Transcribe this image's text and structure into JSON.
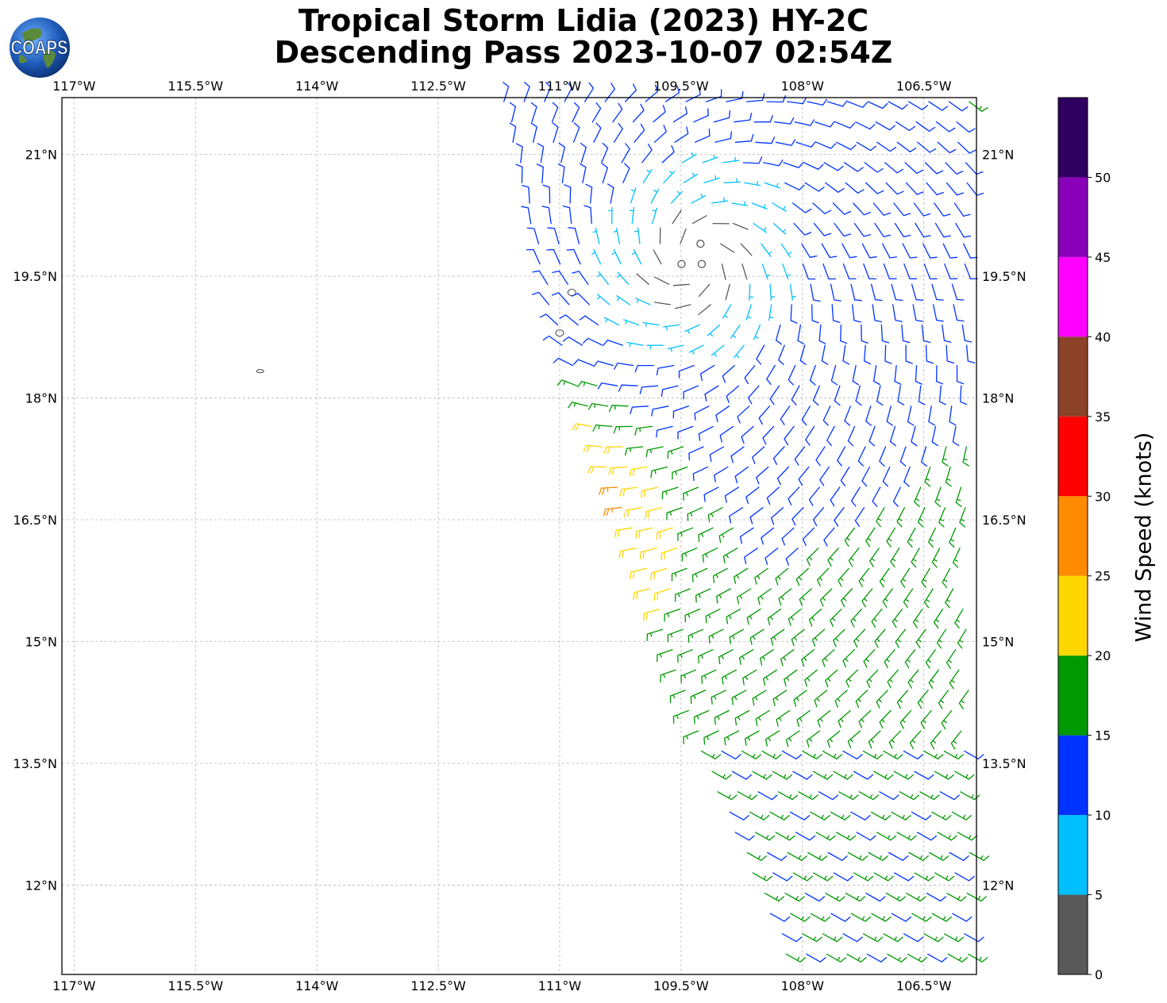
{
  "title": {
    "line1": "Tropical Storm Lidia (2023) HY-2C",
    "line2": "Descending Pass 2023-10-07 02:54Z"
  },
  "logo": {
    "text": "COAPS",
    "icon": "globe-icon"
  },
  "map": {
    "lon_range": [
      -117.15,
      -105.85
    ],
    "lat_range": [
      10.9,
      21.7
    ],
    "lon_ticks": [
      {
        "value": -117,
        "label": "117°W"
      },
      {
        "value": -115.5,
        "label": "115.5°W"
      },
      {
        "value": -114,
        "label": "114°W"
      },
      {
        "value": -112.5,
        "label": "112.5°W"
      },
      {
        "value": -111,
        "label": "111°W"
      },
      {
        "value": -109.5,
        "label": "109.5°W"
      },
      {
        "value": -108,
        "label": "108°W"
      },
      {
        "value": -106.5,
        "label": "106.5°W"
      }
    ],
    "lat_ticks": [
      {
        "value": 21,
        "label": "21°N"
      },
      {
        "value": 19.5,
        "label": "19.5°N"
      },
      {
        "value": 18,
        "label": "18°N"
      },
      {
        "value": 16.5,
        "label": "16.5°N"
      },
      {
        "value": 15,
        "label": "15°N"
      },
      {
        "value": 13.5,
        "label": "13.5°N"
      },
      {
        "value": 12,
        "label": "12°N"
      }
    ],
    "grid": true,
    "storm_center": {
      "lon": -109.3,
      "lat": 19.7
    },
    "swath_edge_west": [
      [
        -111.7,
        21.7
      ],
      [
        -111.1,
        19.0
      ],
      [
        -110.0,
        16.0
      ],
      [
        -109.2,
        13.5
      ],
      [
        -108.2,
        11.2
      ]
    ],
    "islands": [
      {
        "lon": -114.7,
        "lat": 18.33
      },
      {
        "lon": -111.0,
        "lat": 18.8
      },
      {
        "lon": -110.85,
        "lat": 19.3
      }
    ]
  },
  "colorbar": {
    "label": "Wind Speed (knots)",
    "range": [
      0,
      55
    ],
    "bins": [
      {
        "from": 0,
        "to": 5,
        "color": "#595959"
      },
      {
        "from": 5,
        "to": 10,
        "color": "#00bfff"
      },
      {
        "from": 10,
        "to": 15,
        "color": "#0033ff"
      },
      {
        "from": 15,
        "to": 20,
        "color": "#009900"
      },
      {
        "from": 20,
        "to": 25,
        "color": "#ffd700"
      },
      {
        "from": 25,
        "to": 30,
        "color": "#ff8c00"
      },
      {
        "from": 30,
        "to": 35,
        "color": "#ff0000"
      },
      {
        "from": 35,
        "to": 40,
        "color": "#8b4228"
      },
      {
        "from": 40,
        "to": 45,
        "color": "#ff00ff"
      },
      {
        "from": 45,
        "to": 50,
        "color": "#8a00b8"
      },
      {
        "from": 50,
        "to": 55,
        "color": "#300060"
      }
    ],
    "ticks": [
      "0",
      "5",
      "10",
      "15",
      "20",
      "25",
      "30",
      "35",
      "40",
      "45",
      "50"
    ]
  }
}
